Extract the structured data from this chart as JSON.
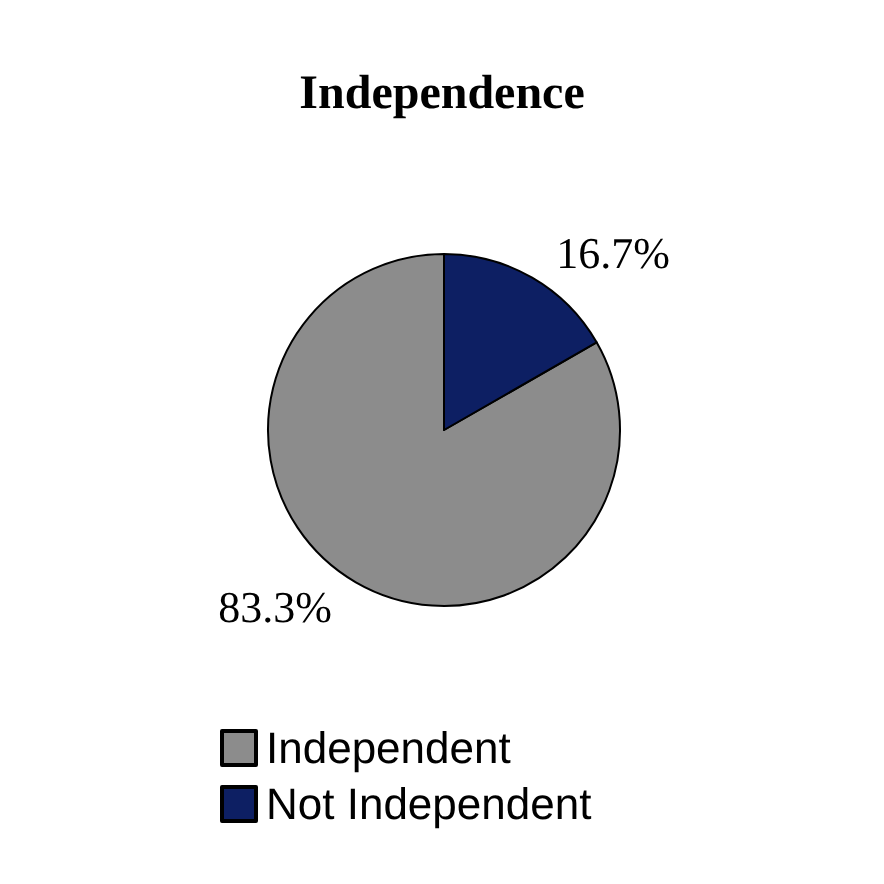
{
  "chart_data": {
    "type": "pie",
    "title": "Independence",
    "categories": [
      "Independent",
      "Not Independent"
    ],
    "values": [
      83.3,
      16.7
    ],
    "colors": [
      "#8c8c8c",
      "#0d1f63"
    ],
    "value_labels": [
      "83.3%",
      "16.7%"
    ],
    "legend": "bottom"
  }
}
